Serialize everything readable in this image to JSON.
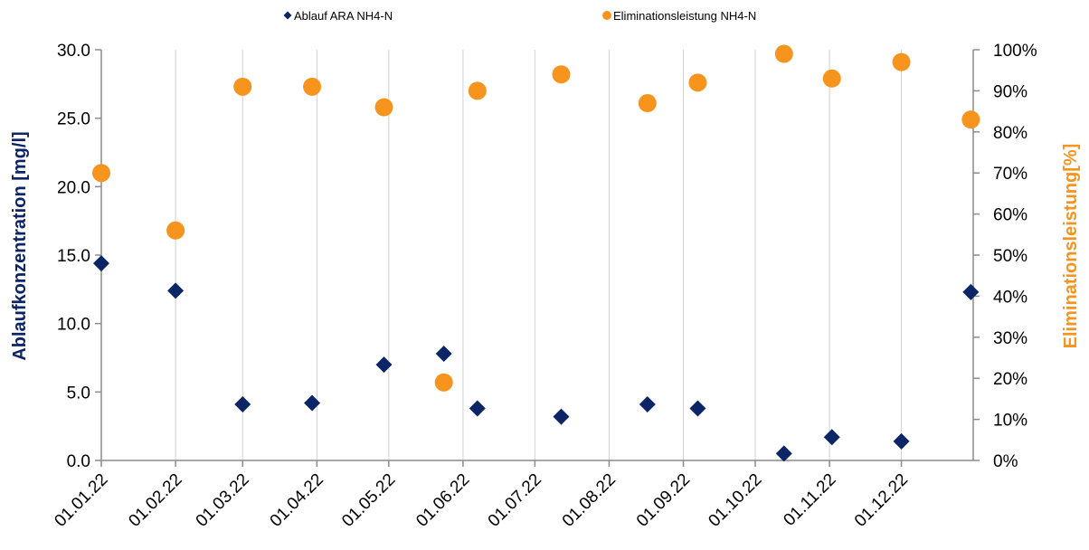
{
  "chart_data": {
    "type": "scatter",
    "title": "",
    "xlabel": "",
    "ylabel_left": "Ablaufkonzentration [mg/l]",
    "ylabel_right": "Eliminationsleistung[%]",
    "x_ticks": [
      "01.01.22",
      "01.02.22",
      "01.03.22",
      "01.04.22",
      "01.05.22",
      "01.06.22",
      "01.07.22",
      "01.08.22",
      "01.09.22",
      "01.10.22",
      "01.11.22",
      "01.12.22"
    ],
    "x_range": [
      "2022-01-01",
      "2022-12-31"
    ],
    "y_left_ticks": [
      "0.0",
      "5.0",
      "10.0",
      "15.0",
      "20.0",
      "25.0",
      "30.0"
    ],
    "y_left_range": [
      0,
      30
    ],
    "y_right_ticks": [
      "0%",
      "10%",
      "20%",
      "30%",
      "40%",
      "50%",
      "60%",
      "70%",
      "80%",
      "90%",
      "100%"
    ],
    "y_right_range": [
      0,
      100
    ],
    "grid": "vertical",
    "legend_position": "top",
    "series": [
      {
        "name": "Ablauf ARA NH4-N",
        "axis": "left",
        "marker": "diamond",
        "color": "#0b2566",
        "points": [
          {
            "x": "2022-01-01",
            "y": 14.4
          },
          {
            "x": "2022-02-01",
            "y": 12.4
          },
          {
            "x": "2022-03-01",
            "y": 4.1
          },
          {
            "x": "2022-03-30",
            "y": 4.2
          },
          {
            "x": "2022-04-29",
            "y": 7.0
          },
          {
            "x": "2022-05-24",
            "y": 7.8
          },
          {
            "x": "2022-06-07",
            "y": 3.8
          },
          {
            "x": "2022-07-12",
            "y": 3.2
          },
          {
            "x": "2022-08-17",
            "y": 4.1
          },
          {
            "x": "2022-09-07",
            "y": 3.8
          },
          {
            "x": "2022-10-13",
            "y": 0.5
          },
          {
            "x": "2022-11-02",
            "y": 1.7
          },
          {
            "x": "2022-12-01",
            "y": 1.4
          },
          {
            "x": "2022-12-30",
            "y": 12.3
          }
        ]
      },
      {
        "name": "Eliminationsleistung NH4-N",
        "axis": "right",
        "marker": "circle",
        "color": "#f7941d",
        "points": [
          {
            "x": "2022-01-01",
            "y": 70
          },
          {
            "x": "2022-02-01",
            "y": 56
          },
          {
            "x": "2022-03-01",
            "y": 91
          },
          {
            "x": "2022-03-30",
            "y": 91
          },
          {
            "x": "2022-04-29",
            "y": 86
          },
          {
            "x": "2022-05-24",
            "y": 19
          },
          {
            "x": "2022-06-07",
            "y": 90
          },
          {
            "x": "2022-07-12",
            "y": 94
          },
          {
            "x": "2022-08-17",
            "y": 87
          },
          {
            "x": "2022-09-07",
            "y": 92
          },
          {
            "x": "2022-10-13",
            "y": 99
          },
          {
            "x": "2022-11-02",
            "y": 93
          },
          {
            "x": "2022-12-01",
            "y": 97
          },
          {
            "x": "2022-12-30",
            "y": 83
          }
        ]
      }
    ]
  }
}
